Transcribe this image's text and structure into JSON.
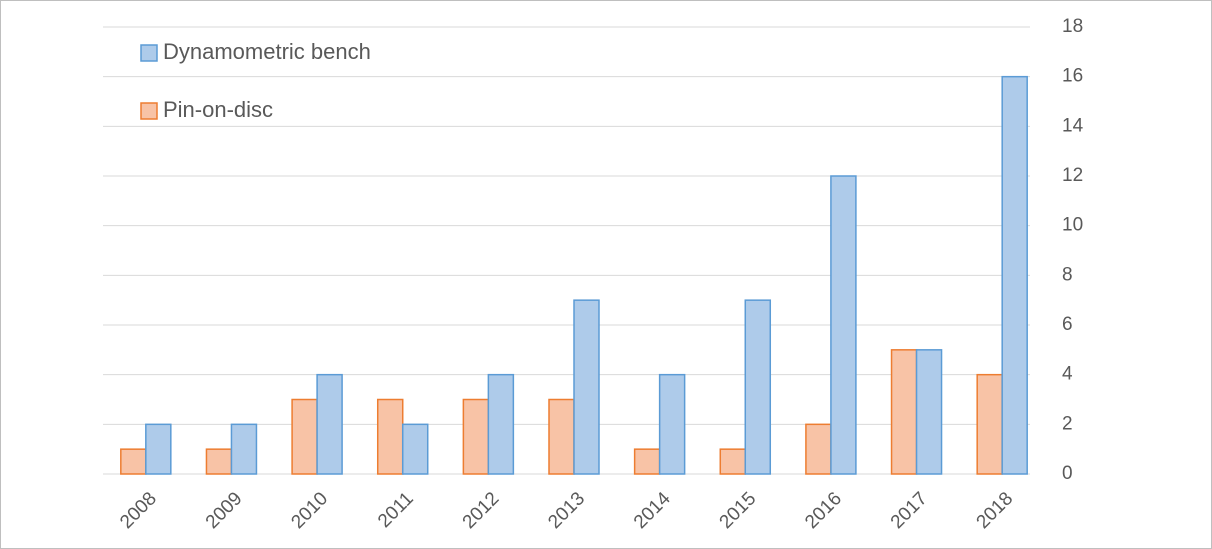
{
  "chart_data": {
    "type": "bar",
    "categories": [
      "2008",
      "2009",
      "2010",
      "2011",
      "2012",
      "2013",
      "2014",
      "2015",
      "2016",
      "2017",
      "2018"
    ],
    "series": [
      {
        "name": "Pin-on-disc",
        "color": "#f8c3a6",
        "edgecolor": "#ed7d31",
        "values": [
          1,
          1,
          3,
          3,
          3,
          3,
          1,
          1,
          2,
          5,
          4
        ]
      },
      {
        "name": "Dynamometric bench",
        "color": "#aecbea",
        "edgecolor": "#5b9bd5",
        "values": [
          2,
          2,
          4,
          2,
          4,
          7,
          4,
          7,
          12,
          5,
          16
        ]
      }
    ],
    "ylim": [
      0,
      18
    ],
    "yticks": [
      0,
      2,
      4,
      6,
      8,
      10,
      12,
      14,
      16,
      18
    ],
    "yaxis_side": "right",
    "grid": true,
    "legend": "upper left"
  }
}
